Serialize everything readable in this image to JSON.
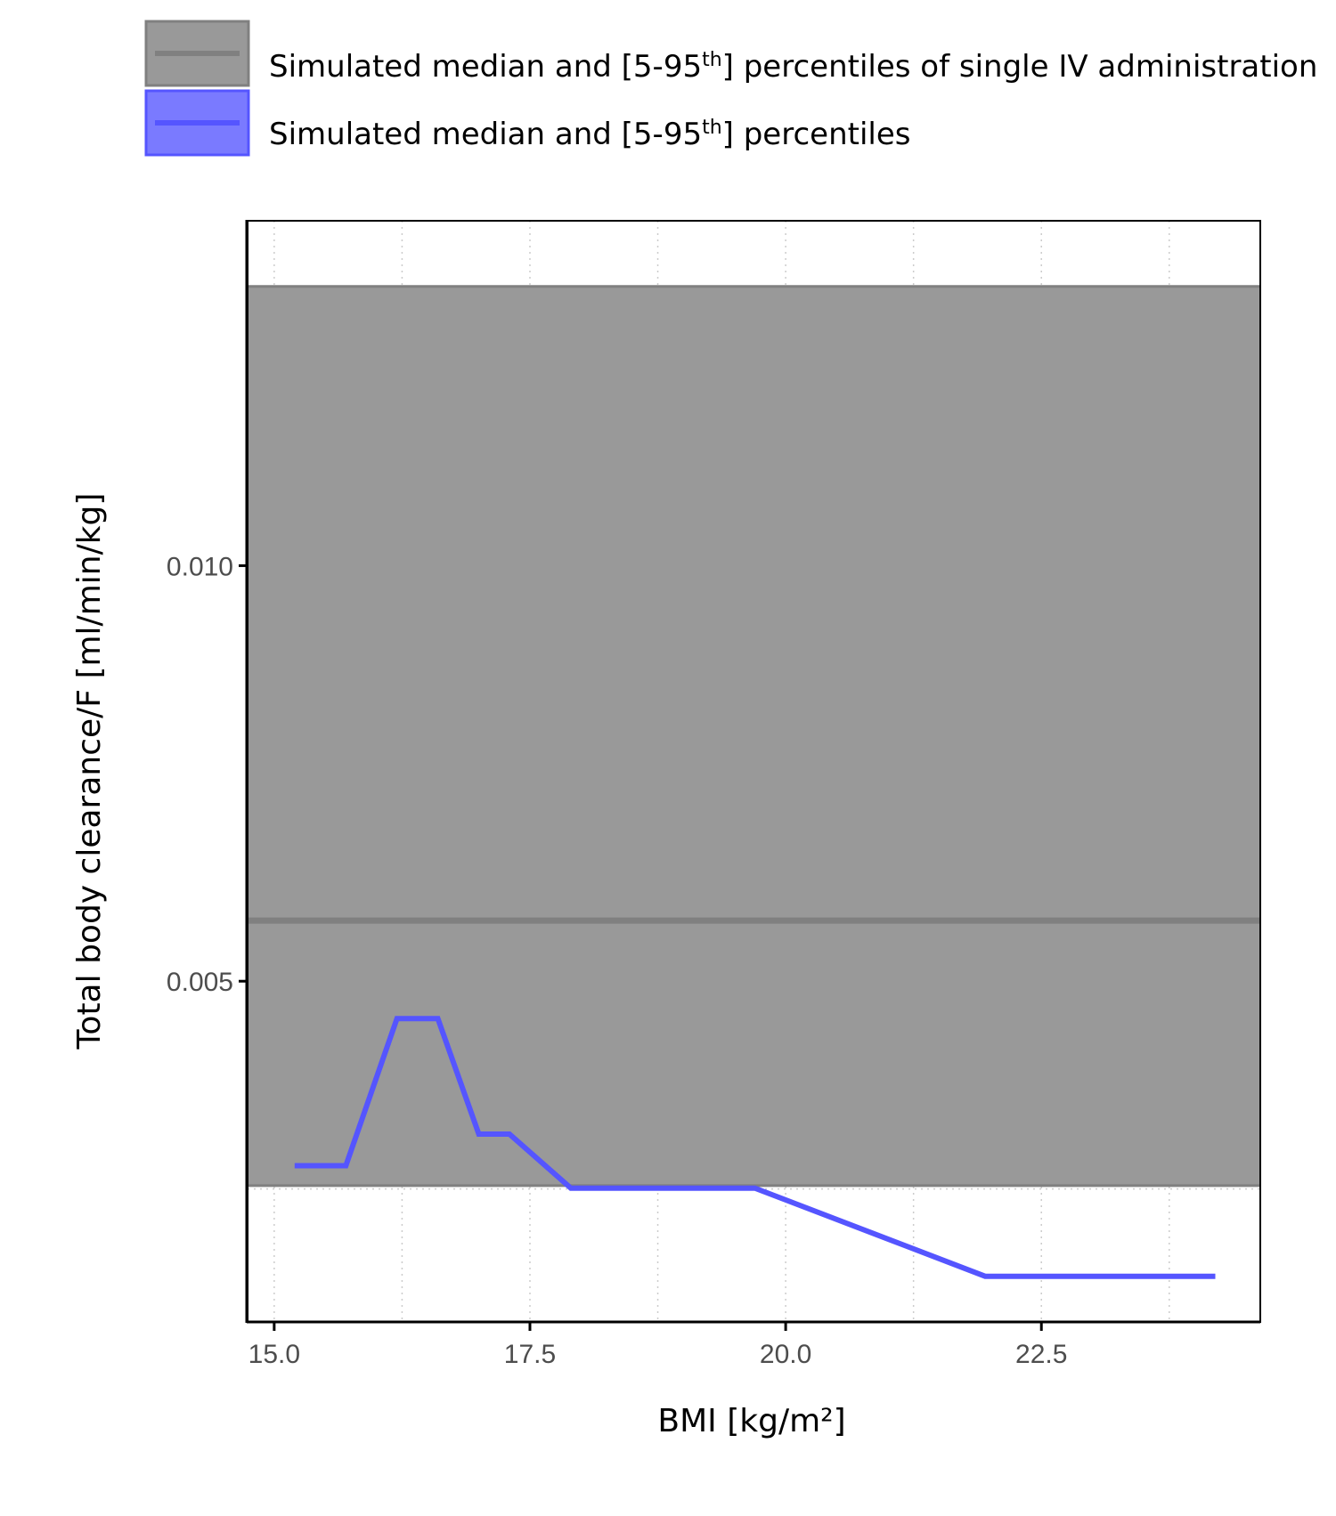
{
  "chart_data": {
    "type": "line",
    "xlabel": "BMI [kg/m²]",
    "ylabel": "Total body clearance/F [ml/min/kg]",
    "xlim": [
      14.74,
      24.64
    ],
    "ylim": [
      0.0009,
      0.01415
    ],
    "x_ticks": [
      "15.0",
      "17.5",
      "20.0",
      "22.5"
    ],
    "x_tick_values": [
      15.0,
      17.5,
      20.0,
      22.5
    ],
    "y_ticks": [
      "0.005",
      "0.010"
    ],
    "y_tick_values": [
      0.005,
      0.01
    ],
    "grid": "dotted minor and major",
    "legend_placement": "top",
    "legend": [
      {
        "label_pre": "Simulated median and [5-95",
        "label_sup": "th",
        "label_post": "] percentiles of single IV administration",
        "line_color": "#808080",
        "fill_color": "#999999"
      },
      {
        "label_pre": "Simulated median and [5-95",
        "label_sup": "th",
        "label_post": "] percentiles",
        "line_color": "#5555ff",
        "fill_color": "#7a7aff"
      }
    ],
    "reference_band": {
      "series": "single IV administration",
      "median": 0.00573,
      "lower": 0.00254,
      "upper": 0.01336,
      "fill_color": "#999999",
      "line_color": "#808080"
    },
    "series": [
      {
        "color": "#5555ff",
        "x": [
          15.2,
          15.7,
          16.2,
          16.6,
          17.0,
          17.3,
          17.9,
          19.7,
          21.95,
          24.2
        ],
        "values": [
          0.00278,
          0.00278,
          0.00455,
          0.00455,
          0.00316,
          0.00316,
          0.00251,
          0.00251,
          0.00145,
          0.00145
        ]
      }
    ]
  }
}
